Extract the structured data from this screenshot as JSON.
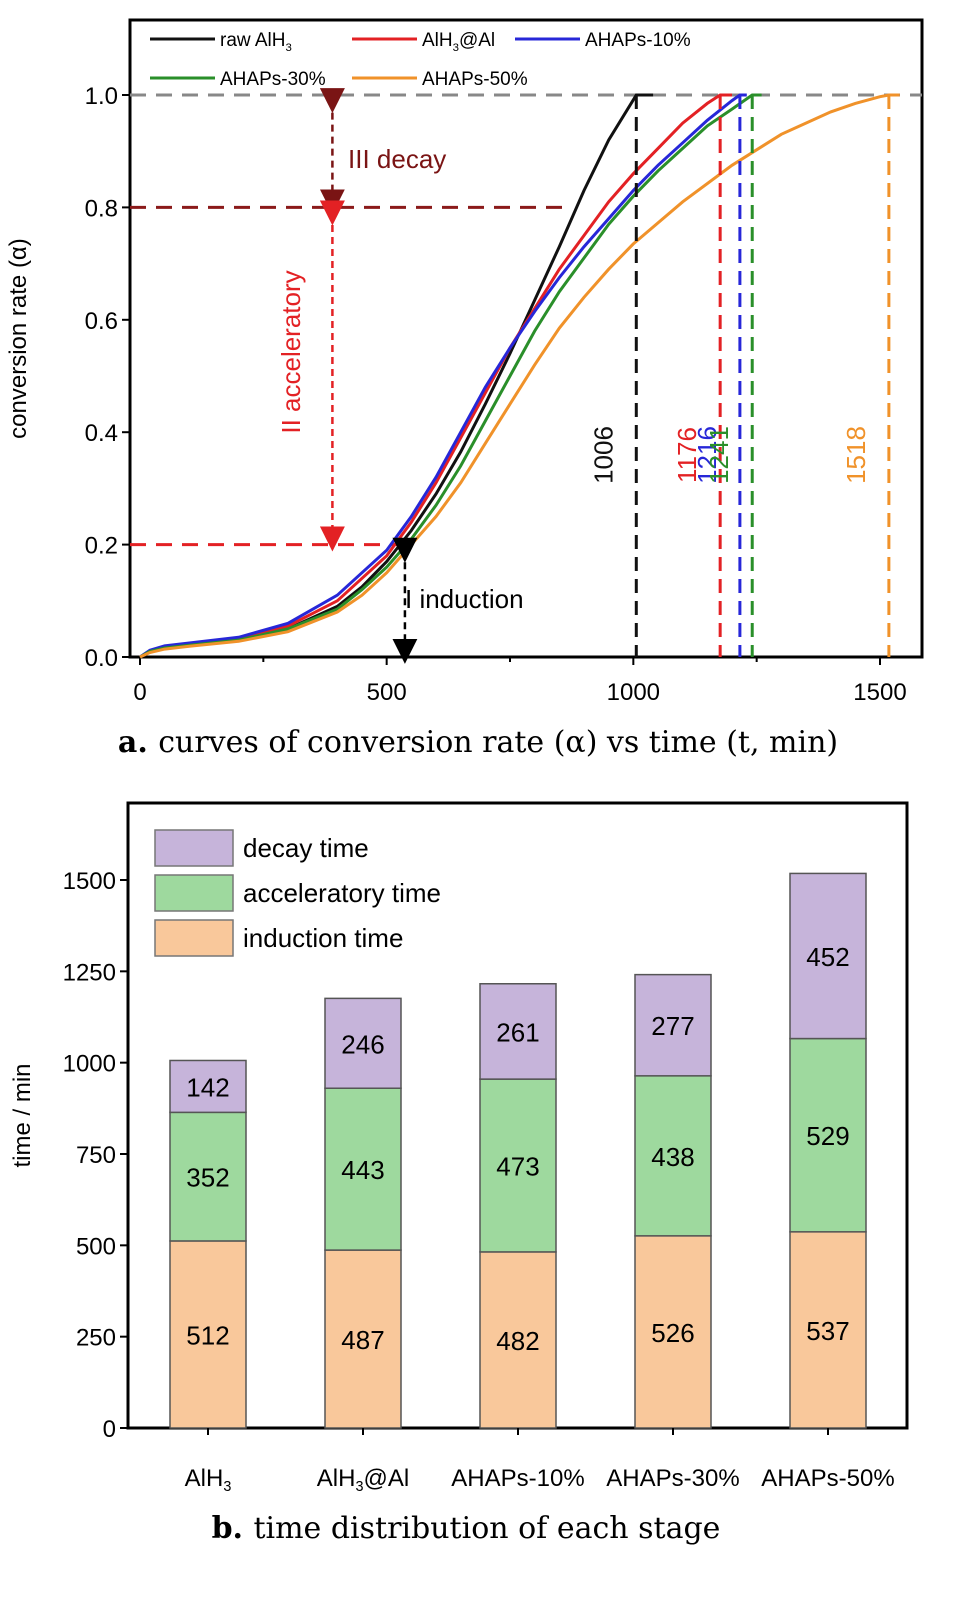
{
  "chart_data": [
    {
      "type": "line",
      "panel_label": "a.",
      "caption": "curves of conversion rate (α) vs time (t, min)",
      "xlabel": "",
      "ylabel": "conversion rate (α)",
      "xlim": [
        0,
        1600
      ],
      "ylim": [
        0,
        1.1
      ],
      "xticks": [
        "0",
        "500",
        "1000",
        "1500"
      ],
      "yticks": [
        "0.0",
        "0.2",
        "0.4",
        "0.6",
        "0.8",
        "1.0"
      ],
      "series": [
        {
          "name": "raw AlH3",
          "color": "#111111",
          "end_time": 1006,
          "end_label": "1006",
          "x": [
            0,
            20,
            50,
            100,
            200,
            300,
            400,
            450,
            500,
            550,
            600,
            650,
            700,
            750,
            800,
            850,
            900,
            950,
            1006,
            1040
          ],
          "y": [
            0.0,
            0.01,
            0.018,
            0.022,
            0.03,
            0.05,
            0.09,
            0.125,
            0.17,
            0.225,
            0.29,
            0.365,
            0.45,
            0.54,
            0.635,
            0.73,
            0.83,
            0.92,
            1.0,
            1.0
          ]
        },
        {
          "name": "AlH3@Al",
          "color": "#e32124",
          "end_time": 1176,
          "end_label": "1176",
          "x": [
            0,
            20,
            50,
            100,
            200,
            300,
            400,
            450,
            500,
            550,
            600,
            650,
            700,
            750,
            800,
            850,
            900,
            950,
            1000,
            1050,
            1100,
            1150,
            1176,
            1200
          ],
          "y": [
            0.0,
            0.01,
            0.018,
            0.023,
            0.032,
            0.055,
            0.1,
            0.14,
            0.18,
            0.24,
            0.31,
            0.39,
            0.47,
            0.55,
            0.62,
            0.69,
            0.75,
            0.81,
            0.86,
            0.905,
            0.95,
            0.985,
            1.0,
            1.0
          ]
        },
        {
          "name": "AHAPs-10%",
          "color": "#2727d8",
          "end_time": 1216,
          "end_label": "1216",
          "x": [
            0,
            20,
            50,
            100,
            200,
            300,
            400,
            450,
            500,
            550,
            600,
            650,
            700,
            750,
            800,
            850,
            900,
            950,
            1000,
            1050,
            1100,
            1150,
            1200,
            1216,
            1230
          ],
          "y": [
            0.0,
            0.012,
            0.02,
            0.025,
            0.035,
            0.06,
            0.11,
            0.15,
            0.19,
            0.25,
            0.32,
            0.4,
            0.48,
            0.55,
            0.615,
            0.675,
            0.73,
            0.78,
            0.83,
            0.875,
            0.915,
            0.955,
            0.99,
            1.0,
            1.0
          ]
        },
        {
          "name": "AHAPs-30%",
          "color": "#2a8f2a",
          "end_time": 1241,
          "end_label": "1241",
          "x": [
            0,
            20,
            50,
            100,
            200,
            300,
            400,
            450,
            500,
            550,
            600,
            650,
            700,
            750,
            800,
            850,
            900,
            950,
            1000,
            1050,
            1100,
            1150,
            1200,
            1241,
            1260
          ],
          "y": [
            0.0,
            0.01,
            0.016,
            0.021,
            0.03,
            0.05,
            0.085,
            0.12,
            0.16,
            0.21,
            0.27,
            0.34,
            0.42,
            0.5,
            0.58,
            0.65,
            0.71,
            0.77,
            0.82,
            0.865,
            0.905,
            0.945,
            0.975,
            1.0,
            1.0
          ]
        },
        {
          "name": "AHAPs-50%",
          "color": "#f0922a",
          "end_time": 1518,
          "end_label": "1518",
          "x": [
            0,
            20,
            50,
            100,
            200,
            300,
            400,
            450,
            500,
            550,
            600,
            650,
            700,
            750,
            800,
            850,
            900,
            950,
            1000,
            1100,
            1200,
            1300,
            1400,
            1450,
            1500,
            1518,
            1540
          ],
          "y": [
            0.0,
            0.008,
            0.014,
            0.019,
            0.028,
            0.045,
            0.08,
            0.11,
            0.15,
            0.2,
            0.25,
            0.31,
            0.38,
            0.45,
            0.52,
            0.585,
            0.64,
            0.69,
            0.735,
            0.81,
            0.875,
            0.93,
            0.97,
            0.985,
            0.997,
            1.0,
            1.0
          ]
        }
      ],
      "annotations": {
        "decay": "III  decay",
        "accel": "II  acceleratory",
        "induction": "I  induction"
      }
    },
    {
      "type": "bar",
      "stacked": true,
      "panel_label": "b.",
      "caption": "time distribution of each stage",
      "xlabel": "",
      "ylabel": "time / min",
      "ylim": [
        0,
        1700
      ],
      "yticks": [
        0,
        250,
        500,
        750,
        1000,
        1250,
        1500
      ],
      "categories": [
        "AlH3",
        "AlH3@Al",
        "AHAPs-10%",
        "AHAPs-30%",
        "AHAPs-50%"
      ],
      "series": [
        {
          "name": "induction time",
          "color": "#f9c89b",
          "values": [
            512,
            487,
            482,
            526,
            537
          ]
        },
        {
          "name": "acceleratory time",
          "color": "#9ed99e",
          "values": [
            352,
            443,
            473,
            438,
            529
          ]
        },
        {
          "name": "decay time",
          "color": "#c6b4da",
          "values": [
            142,
            246,
            261,
            277,
            452
          ]
        }
      ],
      "legend_order": [
        "decay time",
        "acceleratory time",
        "induction time"
      ],
      "legend_position": "top-left"
    }
  ]
}
